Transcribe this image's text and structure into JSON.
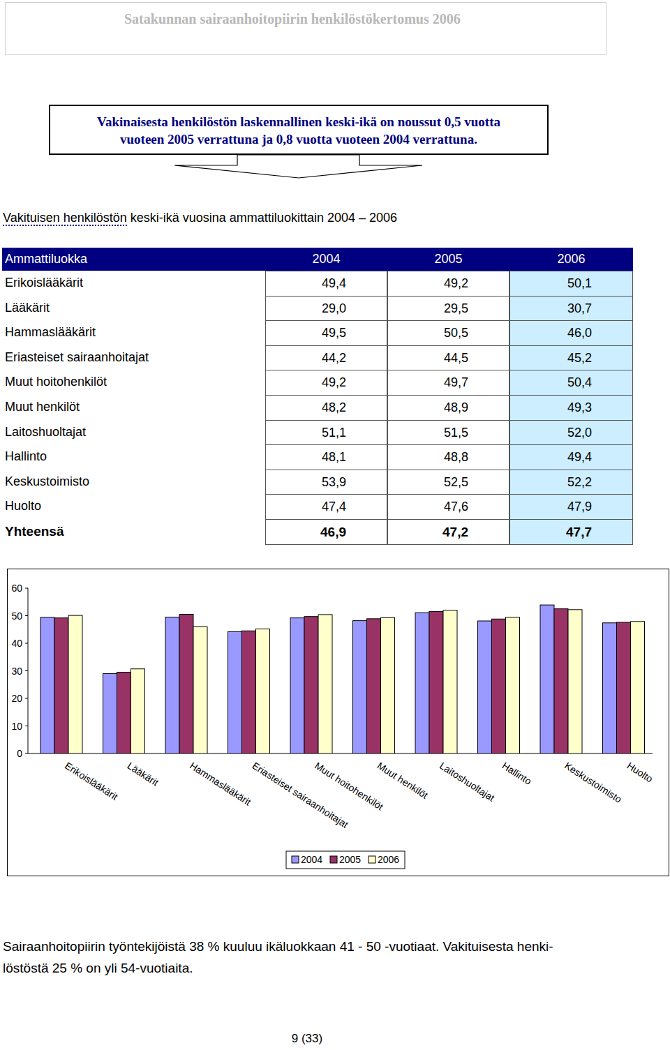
{
  "header": {
    "title": "Satakunnan sairaanhoitopiirin henkilöstökertomus 2006"
  },
  "highlight": {
    "lines": [
      "Vakinaisesta henkilöstön laskennallinen keski-ikä on noussut 0,5 vuotta",
      "vuoteen 2005 verrattuna ja 0,8 vuotta vuoteen 2004 verrattuna."
    ]
  },
  "table": {
    "title_underlined": "Vakituisen henkilöstön",
    "title_rest": "keski-ikä vuosina ammattiluokittain 2004 – 2006",
    "header": [
      "Ammattiluokka",
      "2004",
      "2005",
      "2006"
    ],
    "rows": [
      [
        "Erikoislääkärit",
        "49,4",
        "49,2",
        "50,1"
      ],
      [
        "Lääkärit",
        "29,0",
        "29,5",
        "30,7"
      ],
      [
        "Hammaslääkärit",
        "49,5",
        "50,5",
        "46,0"
      ],
      [
        "Eriasteiset sairaanhoitajat",
        "44,2",
        "44,5",
        "45,2"
      ],
      [
        "Muut hoitohenkilöt",
        "49,2",
        "49,7",
        "50,4"
      ],
      [
        "Muut henkilöt",
        "48,2",
        "48,9",
        "49,3"
      ],
      [
        "Laitoshuoltajat",
        "51,1",
        "51,5",
        "52,0"
      ],
      [
        "Hallinto",
        "48,1",
        "48,8",
        "49,4"
      ],
      [
        "Keskustoimisto",
        "53,9",
        "52,5",
        "52,2"
      ],
      [
        "Huolto",
        "47,4",
        "47,6",
        "47,9"
      ]
    ],
    "total": [
      "Yhteensä",
      "46,9",
      "47,2",
      "47,7"
    ]
  },
  "chart_data": {
    "type": "bar",
    "categories": [
      "Erikoislääkärit",
      "Lääkärit",
      "Hammaslääkärit",
      "Eriasteiset sairaanhoitajat",
      "Muut hoitohenkilöt",
      "Muut henkilöt",
      "Laitoshuoltajat",
      "Hallinto",
      "Keskustoimisto",
      "Huolto"
    ],
    "series": [
      {
        "name": "2004",
        "color": "#9999ff",
        "values": [
          49.4,
          29.0,
          49.5,
          44.2,
          49.2,
          48.2,
          51.1,
          48.1,
          53.9,
          47.4
        ]
      },
      {
        "name": "2005",
        "color": "#993366",
        "values": [
          49.2,
          29.5,
          50.5,
          44.5,
          49.7,
          48.9,
          51.5,
          48.8,
          52.5,
          47.6
        ]
      },
      {
        "name": "2006",
        "color": "#ffffcc",
        "values": [
          50.1,
          30.7,
          46.0,
          45.2,
          50.4,
          49.3,
          52.0,
          49.4,
          52.2,
          47.9
        ]
      }
    ],
    "ylim": [
      0,
      60
    ],
    "yticks": [
      0,
      10,
      20,
      30,
      40,
      50,
      60
    ],
    "grid": false,
    "legend": "bottom"
  },
  "footer": {
    "lines": [
      "Sairaanhoitopiirin työntekijöistä 38 % kuuluu ikäluokkaan 41 - 50 -vuotiaat. Vakituisesta henki-",
      "löstöstä 25 % on yli 54-vuotiaita."
    ]
  },
  "page": {
    "number": "9 (33)"
  }
}
